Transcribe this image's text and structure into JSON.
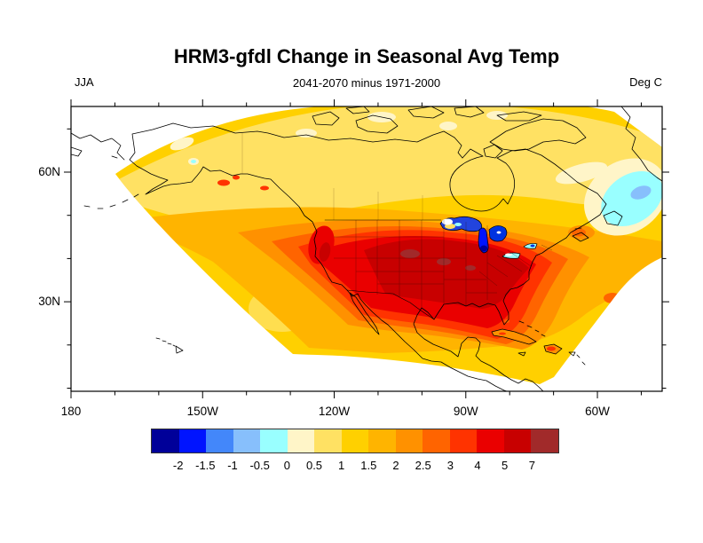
{
  "title": "HRM3-gfdl Change in Seasonal Avg Temp",
  "season_label": "JJA",
  "subtitle": "2041-2070 minus 1971-2000",
  "units_label": "Deg C",
  "chart_data": {
    "type": "heatmap",
    "subtype": "filled-contour-geographic-map",
    "title": "HRM3-gfdl Change in Seasonal Avg Temp",
    "season": "JJA",
    "period_difference": "2041-2070 minus 1971-2000",
    "units": "Deg C",
    "domain_note": "Curved regional-climate-model wedge over North America; white outside domain",
    "x_axis": {
      "label_ticks": [
        "180",
        "150W",
        "120W",
        "90W",
        "60W"
      ],
      "minor_tick_interval_deg": 10,
      "major_tick_interval_deg": 30
    },
    "y_axis": {
      "label_ticks": [
        "60N",
        "30N"
      ],
      "minor_tick_interval_deg": 10,
      "major_tick_interval_deg": 30
    },
    "colorbar": {
      "boundary_labels": [
        "-2",
        "-1.5",
        "-1",
        "-0.5",
        "0",
        "0.5",
        "1",
        "1.5",
        "2",
        "2.5",
        "3",
        "4",
        "5",
        "7"
      ],
      "colors": [
        "#000099",
        "#0014FF",
        "#4387FA",
        "#87BFFC",
        "#99FFFF",
        "#FFF5C8",
        "#FFE163",
        "#FFD000",
        "#FFB400",
        "#FF9100",
        "#FF6400",
        "#FF3300",
        "#EA0000",
        "#C80000",
        "#A12A2A"
      ]
    },
    "features": [
      "Maximum warming of 5 to 7+ Deg C (dark red) over the north-central United States and upper Midwest",
      "Warming decreases outward through 2-3 Deg C (orange) in Canada and Mexico to 1-1.5 Deg C (pale yellow) at the Arctic and ocean edges of the domain",
      "Small cooling patch of 0 to -1 Deg C (cyan/blue) over the North Atlantic near Greenland",
      "Local cooling (blue) over the Great Lakes",
      "Coastlines and US state borders drawn in black; areas outside the curved model domain are white"
    ]
  }
}
